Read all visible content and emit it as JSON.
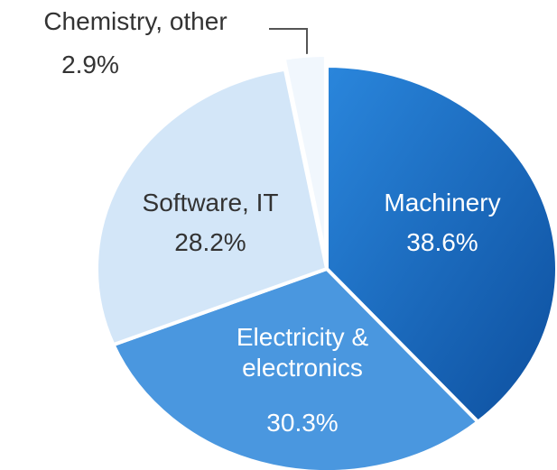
{
  "chart_data": {
    "type": "pie",
    "categories": [
      "Machinery",
      "Electricity & electronics",
      "Software, IT",
      "Chemistry, other"
    ],
    "values": [
      38.6,
      30.3,
      28.2,
      2.9
    ],
    "value_labels": [
      "38.6%",
      "30.3%",
      "28.2%",
      "2.9%"
    ],
    "colors": [
      "#1a6cc4",
      "#4a97df",
      "#d3e6f8",
      "#f1f7fd"
    ],
    "label_colors": [
      "#ffffff",
      "#ffffff",
      "#333333",
      "#333333"
    ]
  }
}
